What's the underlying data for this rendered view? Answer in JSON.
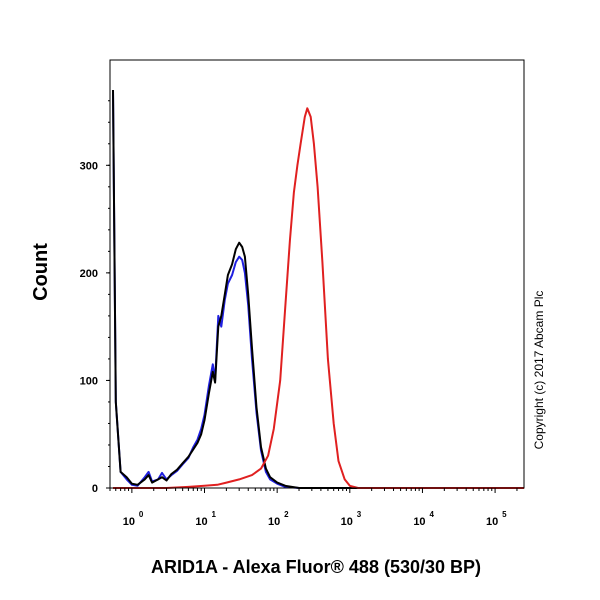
{
  "chart_data": {
    "type": "line",
    "title": "",
    "xlabel": "ARID1A - Alexa Fluor® 488 (530/30 BP)",
    "ylabel": "Count",
    "x_scale": "log",
    "xlim": [
      0.5,
      250000
    ],
    "ylim": [
      0,
      370
    ],
    "x_ticks": [
      {
        "value": 1,
        "base": "10",
        "exp": "0"
      },
      {
        "value": 10,
        "base": "10",
        "exp": "1"
      },
      {
        "value": 100,
        "base": "10",
        "exp": "2"
      },
      {
        "value": 1000,
        "base": "10",
        "exp": "3"
      },
      {
        "value": 10000,
        "base": "10",
        "exp": "4"
      },
      {
        "value": 100000,
        "base": "10",
        "exp": "5"
      }
    ],
    "y_ticks": [
      {
        "value": 0,
        "label": "0"
      },
      {
        "value": 100,
        "label": "100"
      },
      {
        "value": 200,
        "label": "200"
      },
      {
        "value": 300,
        "label": "300"
      }
    ],
    "grid": false,
    "annotations": [
      {
        "text": "Copyright (c) 2017 Abcam Plc"
      }
    ],
    "series": [
      {
        "color": "#2020e0",
        "points": [
          [
            0.55,
            370
          ],
          [
            0.6,
            80
          ],
          [
            0.7,
            15
          ],
          [
            0.85,
            8
          ],
          [
            1.0,
            3
          ],
          [
            1.2,
            2
          ],
          [
            1.5,
            10
          ],
          [
            1.7,
            15
          ],
          [
            1.9,
            6
          ],
          [
            2.3,
            8
          ],
          [
            2.6,
            14
          ],
          [
            3.0,
            8
          ],
          [
            3.5,
            12
          ],
          [
            4.2,
            16
          ],
          [
            5.0,
            22
          ],
          [
            6.0,
            28
          ],
          [
            7.0,
            38
          ],
          [
            8.0,
            45
          ],
          [
            9.0,
            55
          ],
          [
            10.0,
            68
          ],
          [
            11.5,
            95
          ],
          [
            13.0,
            115
          ],
          [
            14.0,
            100
          ],
          [
            15.5,
            160
          ],
          [
            17.0,
            150
          ],
          [
            19.0,
            175
          ],
          [
            21.0,
            190
          ],
          [
            24.0,
            198
          ],
          [
            27.0,
            210
          ],
          [
            30.0,
            215
          ],
          [
            33.0,
            212
          ],
          [
            36.0,
            200
          ],
          [
            40.0,
            170
          ],
          [
            45.0,
            120
          ],
          [
            52.0,
            70
          ],
          [
            60.0,
            35
          ],
          [
            70.0,
            15
          ],
          [
            80.0,
            8
          ],
          [
            100.0,
            4
          ],
          [
            130.0,
            1
          ],
          [
            200.0,
            0
          ],
          [
            250000,
            0
          ]
        ]
      },
      {
        "color": "#000000",
        "points": [
          [
            0.55,
            370
          ],
          [
            0.6,
            80
          ],
          [
            0.7,
            15
          ],
          [
            0.85,
            10
          ],
          [
            1.0,
            4
          ],
          [
            1.2,
            3
          ],
          [
            1.5,
            8
          ],
          [
            1.7,
            12
          ],
          [
            1.9,
            5
          ],
          [
            2.3,
            8
          ],
          [
            2.6,
            10
          ],
          [
            3.0,
            7
          ],
          [
            3.5,
            13
          ],
          [
            4.2,
            17
          ],
          [
            5.0,
            23
          ],
          [
            6.0,
            29
          ],
          [
            7.0,
            36
          ],
          [
            8.0,
            42
          ],
          [
            9.0,
            50
          ],
          [
            10.0,
            63
          ],
          [
            11.5,
            88
          ],
          [
            13.0,
            108
          ],
          [
            14.0,
            98
          ],
          [
            15.5,
            150
          ],
          [
            17.0,
            160
          ],
          [
            19.0,
            180
          ],
          [
            21.0,
            198
          ],
          [
            24.0,
            208
          ],
          [
            27.0,
            222
          ],
          [
            30.0,
            228
          ],
          [
            33.0,
            224
          ],
          [
            36.0,
            215
          ],
          [
            40.0,
            180
          ],
          [
            45.0,
            130
          ],
          [
            52.0,
            75
          ],
          [
            60.0,
            38
          ],
          [
            70.0,
            18
          ],
          [
            80.0,
            10
          ],
          [
            100.0,
            5
          ],
          [
            130.0,
            2
          ],
          [
            200.0,
            0
          ],
          [
            250000,
            0
          ]
        ]
      },
      {
        "color": "#e02020",
        "points": [
          [
            0.55,
            0
          ],
          [
            3.0,
            0
          ],
          [
            6.0,
            1
          ],
          [
            10.0,
            2
          ],
          [
            15.0,
            3
          ],
          [
            20.0,
            5
          ],
          [
            30.0,
            8
          ],
          [
            45.0,
            12
          ],
          [
            60.0,
            18
          ],
          [
            75.0,
            30
          ],
          [
            90.0,
            55
          ],
          [
            110.0,
            100
          ],
          [
            130.0,
            170
          ],
          [
            150.0,
            230
          ],
          [
            170.0,
            275
          ],
          [
            190.0,
            300
          ],
          [
            210.0,
            320
          ],
          [
            240.0,
            345
          ],
          [
            260.0,
            353
          ],
          [
            290.0,
            345
          ],
          [
            320.0,
            320
          ],
          [
            360.0,
            280
          ],
          [
            420.0,
            210
          ],
          [
            500.0,
            120
          ],
          [
            600.0,
            60
          ],
          [
            700.0,
            25
          ],
          [
            850.0,
            8
          ],
          [
            1000.0,
            2
          ],
          [
            1300.0,
            0
          ],
          [
            250000,
            0
          ]
        ]
      }
    ]
  }
}
